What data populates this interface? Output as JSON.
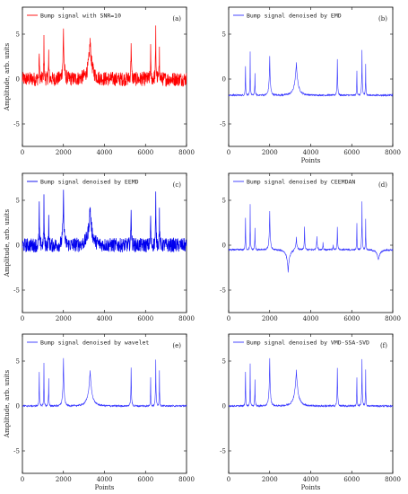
{
  "chart_data": [
    {
      "type": "line",
      "panel": "(a)",
      "color": "#ff0000",
      "noise": "high",
      "legend": "Bump signal with SNR=10",
      "xlabel": "",
      "ylabel": "Amplitude, arb. units",
      "xlim": [
        0,
        8000
      ],
      "ylim": [
        -7.5,
        8
      ],
      "xticks": [
        "0",
        "2000",
        "4000",
        "6000",
        "8000"
      ],
      "yticks": [
        "-5",
        "0",
        "5"
      ],
      "peaks": [
        [
          820,
          3.3,
          45
        ],
        [
          1050,
          5.3,
          40
        ],
        [
          1280,
          3.0,
          45
        ],
        [
          2000,
          5.5,
          110
        ],
        [
          3300,
          4.3,
          330
        ],
        [
          5300,
          4.5,
          60
        ],
        [
          6250,
          3.6,
          40
        ],
        [
          6500,
          5.5,
          55
        ],
        [
          6680,
          4.0,
          40
        ]
      ],
      "baseline": 0
    },
    {
      "type": "line",
      "panel": "(b)",
      "color": "#3333ff",
      "noise": "low",
      "legend": "Bump signal denoised by EMD",
      "xlabel": "Points",
      "ylabel": "",
      "xlim": [
        0,
        8000
      ],
      "ylim": [
        -7.5,
        8
      ],
      "xticks": [
        "0",
        "2000",
        "4000",
        "6000",
        "8000"
      ],
      "yticks": [
        "-5",
        "0",
        "5"
      ],
      "peaks": [
        [
          820,
          3.2,
          45
        ],
        [
          1050,
          4.8,
          40
        ],
        [
          1280,
          2.5,
          45
        ],
        [
          2000,
          4.3,
          110
        ],
        [
          3300,
          3.7,
          300
        ],
        [
          5300,
          4.0,
          60
        ],
        [
          6250,
          2.8,
          40
        ],
        [
          6500,
          5.0,
          55
        ],
        [
          6680,
          3.5,
          40
        ]
      ],
      "baseline": -1.8
    },
    {
      "type": "line",
      "panel": "(c)",
      "color": "#0000ee",
      "noise": "high",
      "legend": "Bump signal denoised by EEMD",
      "xlabel": "",
      "ylabel": "Amplitude, arb. units",
      "xlim": [
        0,
        8000
      ],
      "ylim": [
        -7.5,
        8
      ],
      "xticks": [
        "0",
        "2000",
        "4000",
        "6000",
        "8000"
      ],
      "yticks": [
        "-5",
        "0",
        "5"
      ],
      "peaks": [
        [
          820,
          4.5,
          45
        ],
        [
          1050,
          5.3,
          40
        ],
        [
          1280,
          3.0,
          45
        ],
        [
          2000,
          5.5,
          110
        ],
        [
          3300,
          4.3,
          330
        ],
        [
          5300,
          4.5,
          60
        ],
        [
          6250,
          3.6,
          40
        ],
        [
          6500,
          5.5,
          55
        ],
        [
          6680,
          4.0,
          40
        ]
      ],
      "baseline": 0
    },
    {
      "type": "line",
      "panel": "(d)",
      "color": "#3333ff",
      "noise": "low",
      "legend": "Bump signal denoised by CEEMDAN",
      "xlabel": "",
      "ylabel": "",
      "xlim": [
        0,
        8000
      ],
      "ylim": [
        -7.5,
        8
      ],
      "xticks": [
        "0",
        "2000",
        "4000",
        "6000",
        "8000"
      ],
      "yticks": [
        "-5",
        "0",
        "5"
      ],
      "peaks": [
        [
          820,
          3.5,
          45
        ],
        [
          1050,
          5.0,
          40
        ],
        [
          1280,
          2.5,
          45
        ],
        [
          2000,
          4.3,
          100
        ],
        [
          2900,
          -2.5,
          250
        ],
        [
          3300,
          1.5,
          120
        ],
        [
          3700,
          2.5,
          60
        ],
        [
          4300,
          1.5,
          80
        ],
        [
          4600,
          0.8,
          60
        ],
        [
          5100,
          0.5,
          60
        ],
        [
          5300,
          2.5,
          60
        ],
        [
          6250,
          3.0,
          40
        ],
        [
          6500,
          5.3,
          55
        ],
        [
          6680,
          3.5,
          40
        ],
        [
          7300,
          -1.2,
          300
        ]
      ],
      "baseline": -0.5
    },
    {
      "type": "line",
      "panel": "(e)",
      "color": "#3333ff",
      "noise": "low",
      "legend": "Bump signal denoised by wavelet",
      "xlabel": "Points",
      "ylabel": "Amplitude, arb. units",
      "xlim": [
        0,
        8000
      ],
      "ylim": [
        -7.5,
        8
      ],
      "xticks": [
        "0",
        "2000",
        "4000",
        "6000",
        "8000"
      ],
      "yticks": [
        "-5",
        "0",
        "5"
      ],
      "peaks": [
        [
          820,
          3.8,
          45
        ],
        [
          1050,
          4.8,
          40
        ],
        [
          1280,
          3.0,
          45
        ],
        [
          2000,
          5.3,
          110
        ],
        [
          3300,
          4.0,
          330
        ],
        [
          5300,
          4.2,
          60
        ],
        [
          6250,
          3.2,
          40
        ],
        [
          6500,
          5.2,
          55
        ],
        [
          6680,
          4.0,
          40
        ]
      ],
      "baseline": 0
    },
    {
      "type": "line",
      "panel": "(f)",
      "color": "#3333ff",
      "noise": "low",
      "legend": "Bump signal denoised by VMD-SSA-SVD",
      "xlabel": "Points",
      "ylabel": "",
      "xlim": [
        0,
        8000
      ],
      "ylim": [
        -7.5,
        8
      ],
      "xticks": [
        "0",
        "2000",
        "4000",
        "6000",
        "8000"
      ],
      "yticks": [
        "-5",
        "0",
        "5"
      ],
      "peaks": [
        [
          820,
          3.8,
          45
        ],
        [
          1050,
          4.8,
          40
        ],
        [
          1280,
          3.0,
          45
        ],
        [
          2000,
          5.3,
          110
        ],
        [
          3300,
          4.0,
          330
        ],
        [
          5300,
          4.2,
          60
        ],
        [
          6250,
          3.2,
          40
        ],
        [
          6500,
          5.2,
          55
        ],
        [
          6680,
          4.0,
          40
        ]
      ],
      "baseline": 0
    }
  ]
}
